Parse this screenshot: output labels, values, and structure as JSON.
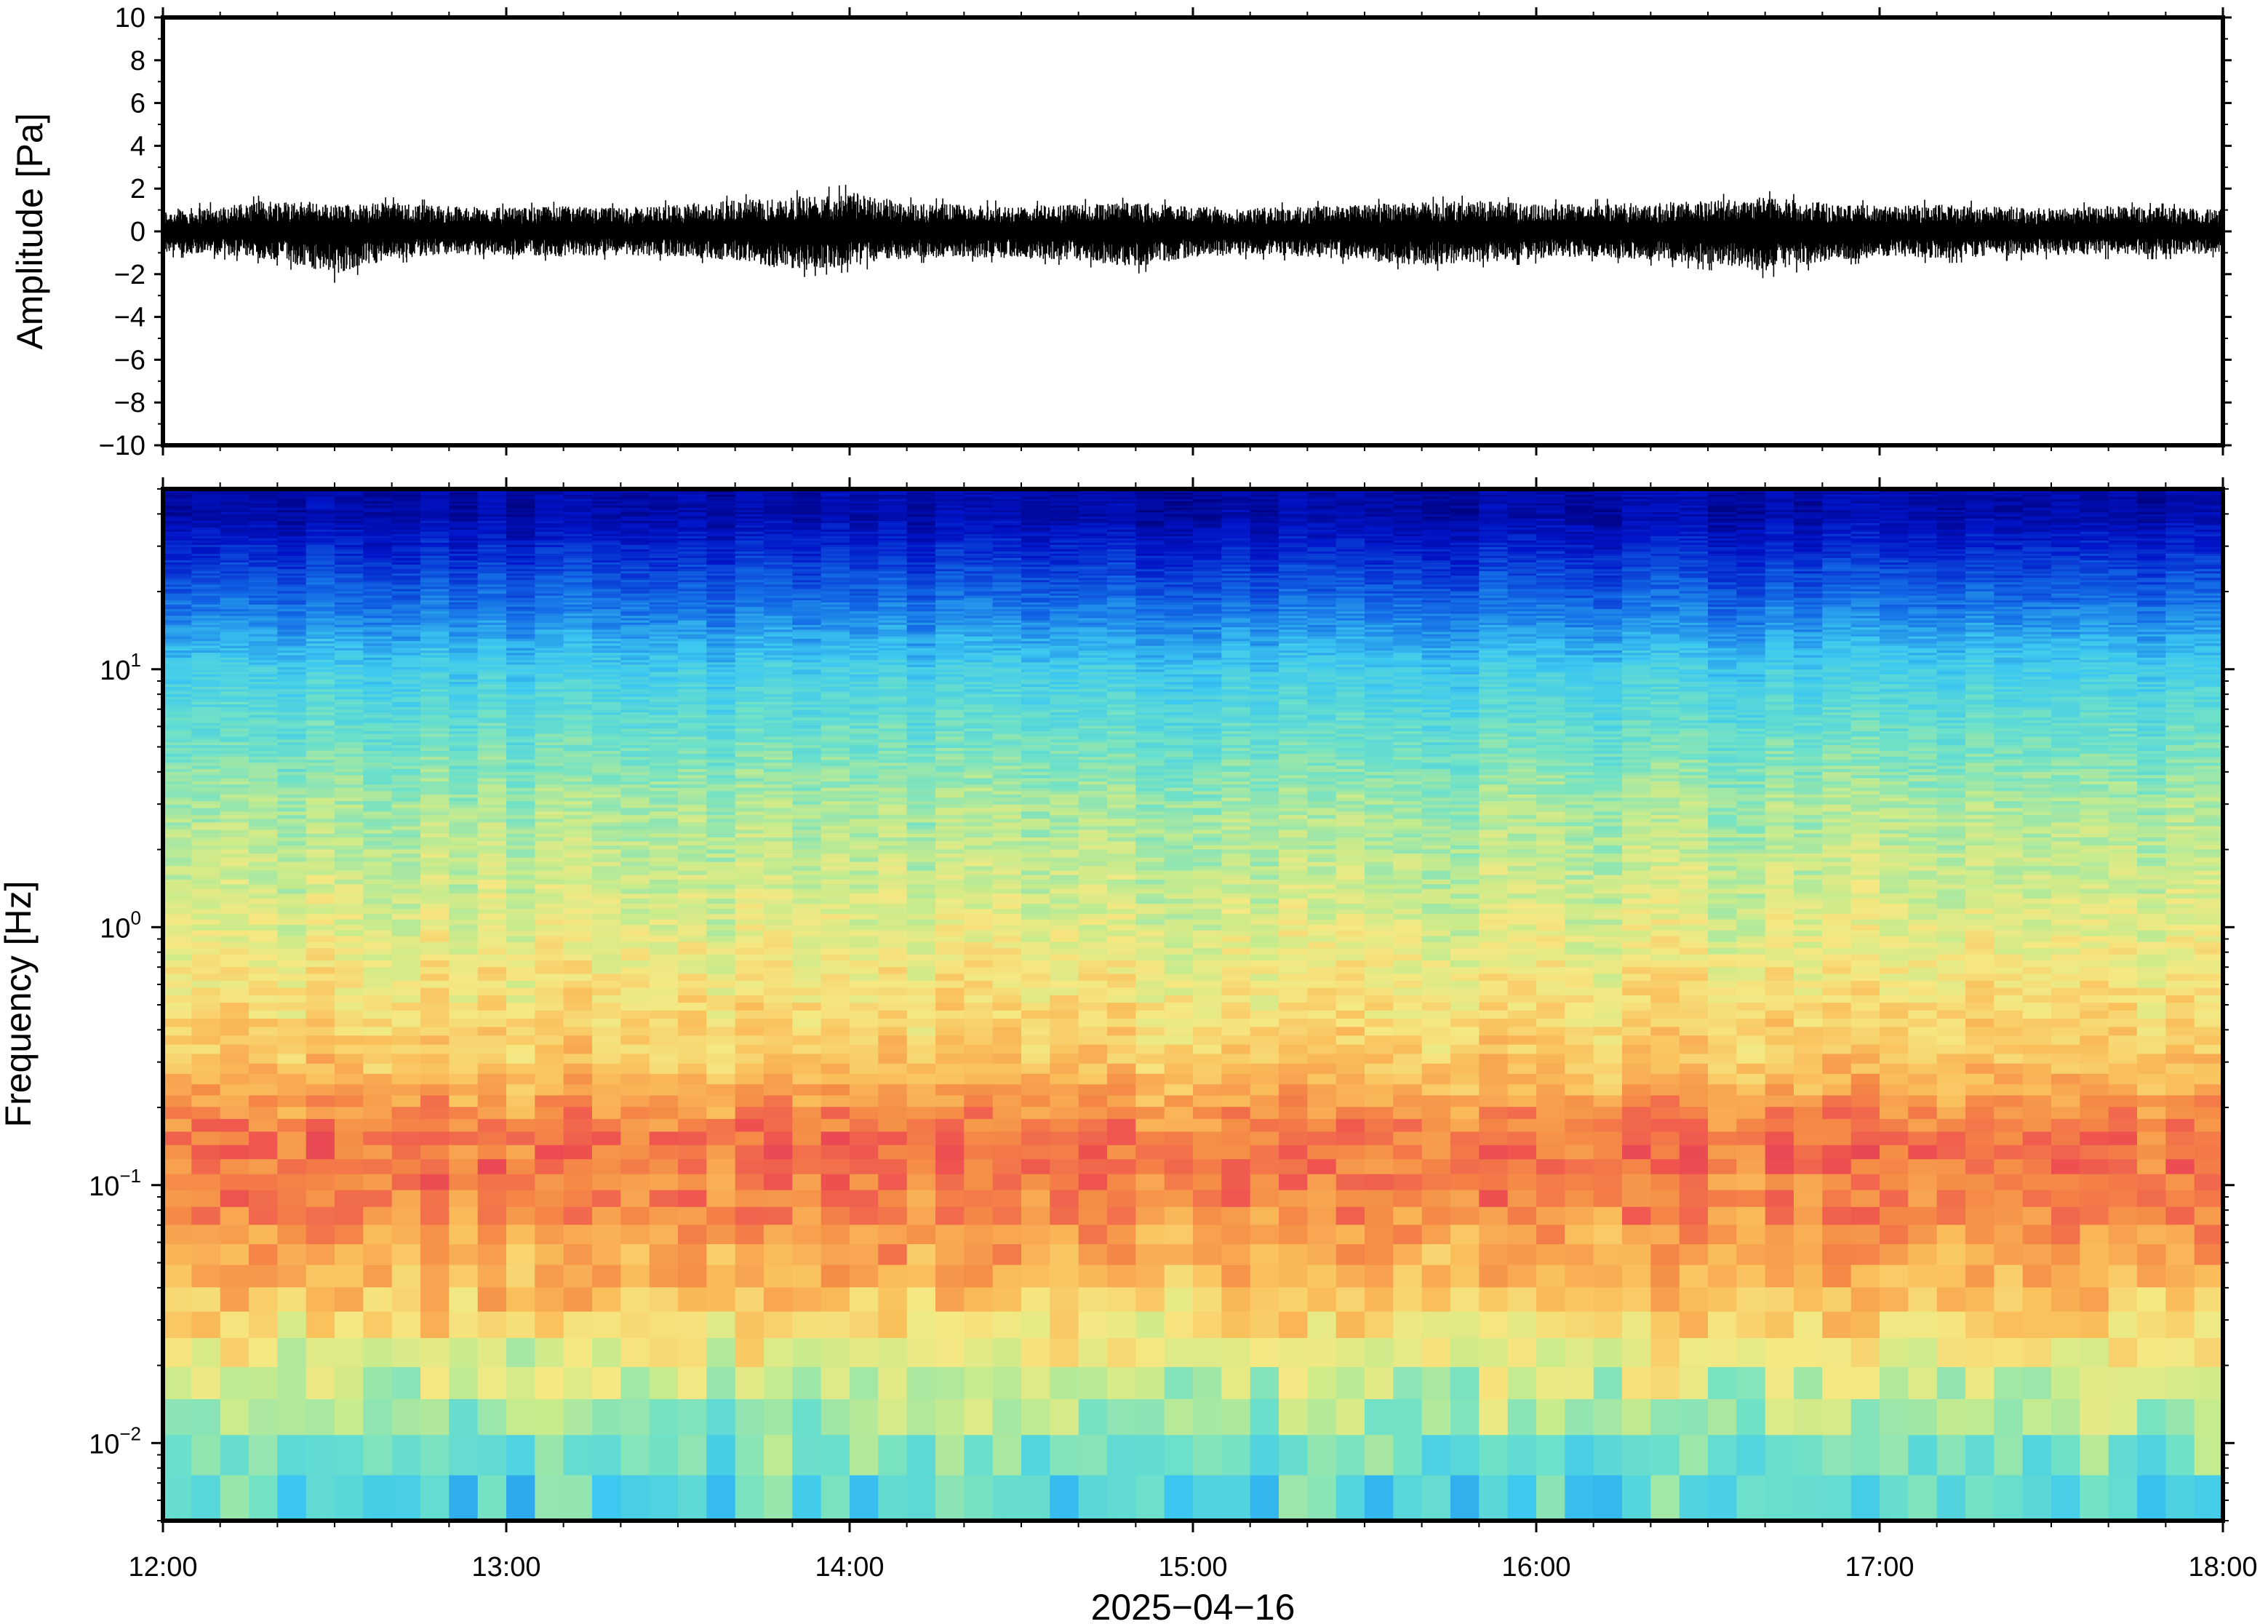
{
  "chart_data": [
    {
      "type": "line",
      "panel": "waveform",
      "ylabel": "Amplitude [Pa]",
      "ylim": [
        -10,
        10
      ],
      "y_ticks": [
        "10",
        "8",
        "6",
        "4",
        "2",
        "0",
        "−2",
        "−4",
        "−6",
        "−8",
        "−10"
      ],
      "y_tick_values": [
        10,
        8,
        6,
        4,
        2,
        0,
        -2,
        -4,
        -6,
        -8,
        -10
      ],
      "xlim": [
        "12:00",
        "18:00"
      ],
      "series": [
        {
          "sampling": "10 min envelope (approx.)",
          "x": [
            "12:00",
            "12:10",
            "12:20",
            "12:30",
            "12:40",
            "12:50",
            "13:00",
            "13:10",
            "13:20",
            "13:30",
            "13:40",
            "13:50",
            "14:00",
            "14:10",
            "14:20",
            "14:30",
            "14:40",
            "14:50",
            "15:00",
            "15:10",
            "15:20",
            "15:30",
            "15:40",
            "15:50",
            "16:00",
            "16:10",
            "16:20",
            "16:30",
            "16:40",
            "16:50",
            "17:00",
            "17:10",
            "17:20",
            "17:30",
            "17:40",
            "17:50",
            "18:00"
          ],
          "max": [
            1.2,
            1.4,
            1.8,
            1.5,
            1.6,
            1.4,
            1.3,
            1.4,
            1.3,
            1.5,
            1.7,
            1.9,
            2.2,
            1.6,
            1.5,
            1.4,
            1.5,
            1.6,
            1.4,
            1.3,
            1.4,
            1.5,
            1.6,
            1.7,
            1.5,
            1.5,
            1.6,
            1.7,
            1.9,
            1.6,
            1.4,
            1.5,
            1.4,
            1.3,
            1.4,
            1.3,
            1.2
          ],
          "min": [
            -1.2,
            -1.3,
            -1.6,
            -2.4,
            -1.5,
            -1.3,
            -1.3,
            -1.4,
            -1.3,
            -1.4,
            -1.6,
            -2.2,
            -1.9,
            -1.5,
            -1.4,
            -1.5,
            -1.6,
            -2.0,
            -1.4,
            -1.3,
            -1.4,
            -1.6,
            -1.9,
            -1.7,
            -1.5,
            -1.4,
            -1.6,
            -1.8,
            -2.2,
            -1.7,
            -1.4,
            -1.5,
            -1.4,
            -1.3,
            -1.3,
            -1.3,
            -1.2
          ]
        }
      ]
    },
    {
      "type": "heatmap",
      "panel": "spectrogram",
      "ylabel": "Frequency [Hz]",
      "xlabel": "2025−04−16",
      "y_scale": "log",
      "ylim": [
        0.005,
        50
      ],
      "y_ticks": [
        {
          "base": "10",
          "exp": "1",
          "value": 10
        },
        {
          "base": "10",
          "exp": "0",
          "value": 1
        },
        {
          "base": "10",
          "exp": "−1",
          "value": 0.1
        },
        {
          "base": "10",
          "exp": "−2",
          "value": 0.01
        }
      ],
      "x_ticks": [
        "12:00",
        "13:00",
        "14:00",
        "15:00",
        "16:00",
        "17:00",
        "18:00"
      ],
      "xlim": [
        "12:00",
        "18:00"
      ],
      "colormap": "jet (dark blue = low power, red = high power)",
      "typical_power_by_frequency": {
        "frequency_hz": [
          0.006,
          0.01,
          0.02,
          0.04,
          0.08,
          0.15,
          0.3,
          1,
          3,
          10,
          20,
          40
        ],
        "relative_power_0_to_1": [
          0.4,
          0.48,
          0.6,
          0.74,
          0.84,
          0.88,
          0.72,
          0.6,
          0.52,
          0.36,
          0.2,
          0.06
        ]
      },
      "colors": {
        "high": "#ee3333",
        "mid": "#f0e888",
        "low": "#00008b"
      }
    }
  ]
}
